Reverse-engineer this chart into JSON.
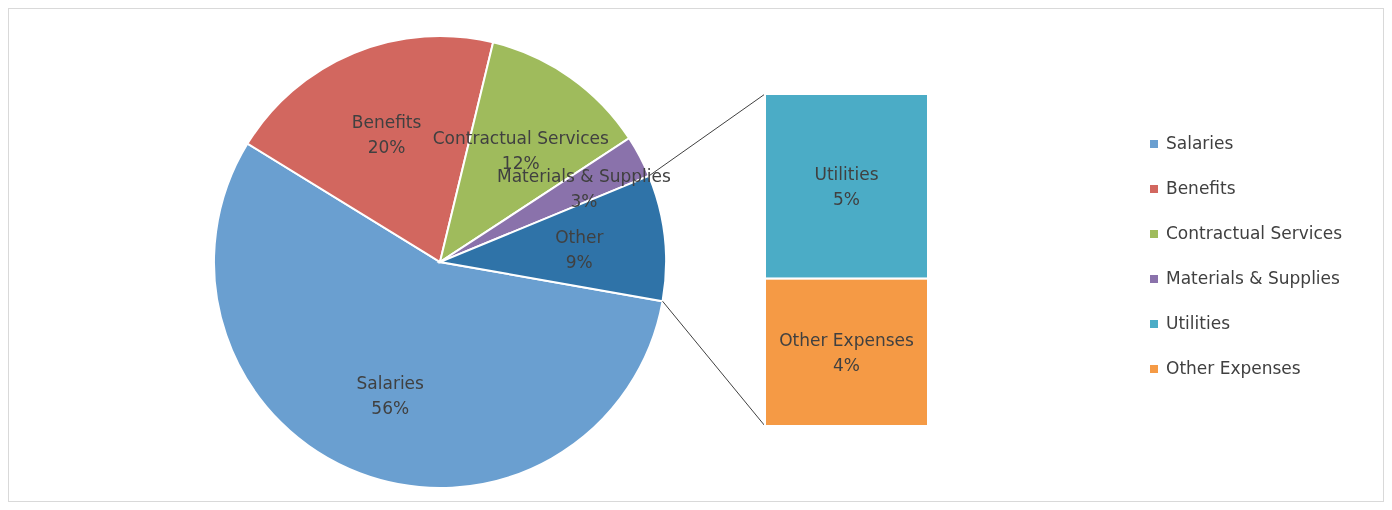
{
  "chart_data": [
    {
      "type": "pie",
      "categories": [
        "Salaries",
        "Benefits",
        "Contractual Services",
        "Materials & Supplies",
        "Other"
      ],
      "values": [
        56,
        20,
        12,
        3,
        9
      ],
      "value_labels": [
        "56%",
        "20%",
        "12%",
        "3%",
        "9%"
      ],
      "colors": [
        "#6a9fd0",
        "#d2675f",
        "#9fbb5c",
        "#8a72ab",
        "#2f73a8"
      ],
      "legend": "right"
    },
    {
      "type": "bar",
      "stacked": true,
      "categories": [
        null
      ],
      "series": [
        {
          "name": "Other Expenses",
          "color": "#f59a45",
          "values": [
            4
          ],
          "value_labels": [
            "4%"
          ]
        },
        {
          "name": "Utilities",
          "color": "#4bacc6",
          "values": [
            5
          ],
          "value_labels": [
            "5%"
          ]
        }
      ],
      "legend": "right"
    }
  ]
}
